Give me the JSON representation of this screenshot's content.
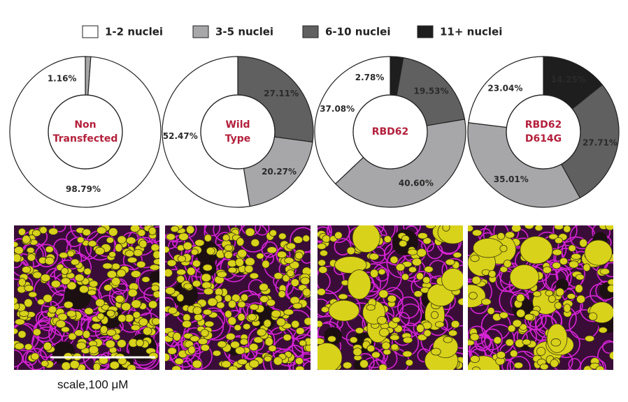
{
  "chart_data": [
    {
      "type": "donut",
      "title": [
        "Non",
        "Transfected"
      ],
      "categories": [
        "1-2 nuclei",
        "3-5 nuclei",
        "6-10 nuclei",
        "11+ nuclei"
      ],
      "colors": [
        "#ffffff",
        "#a7a7a9",
        "#606061",
        "#1e1e1e"
      ],
      "values": [
        98.79,
        1.16,
        0,
        0
      ],
      "value_labels": [
        "98.79%",
        "1.16%",
        null,
        null
      ]
    },
    {
      "type": "donut",
      "title": [
        "Wild",
        "Type"
      ],
      "categories": [
        "1-2 nuclei",
        "3-5 nuclei",
        "6-10 nuclei",
        "11+ nuclei"
      ],
      "colors": [
        "#ffffff",
        "#a7a7a9",
        "#606061",
        "#1e1e1e"
      ],
      "values": [
        52.47,
        20.27,
        27.11,
        0
      ],
      "value_labels": [
        "52.47%",
        "20.27%",
        "27.11%",
        null
      ]
    },
    {
      "type": "donut",
      "title": [
        "RBD62"
      ],
      "categories": [
        "1-2 nuclei",
        "3-5 nuclei",
        "6-10 nuclei",
        "11+ nuclei"
      ],
      "colors": [
        "#ffffff",
        "#a7a7a9",
        "#606061",
        "#1e1e1e"
      ],
      "values": [
        37.08,
        40.6,
        19.53,
        2.78
      ],
      "value_labels": [
        "37.08%",
        "40.60%",
        "19.53%",
        "2.78%"
      ]
    },
    {
      "type": "donut",
      "title": [
        "RBD62",
        "D614G"
      ],
      "categories": [
        "1-2 nuclei",
        "3-5 nuclei",
        "6-10 nuclei",
        "11+ nuclei"
      ],
      "colors": [
        "#ffffff",
        "#a7a7a9",
        "#606061",
        "#1e1e1e"
      ],
      "values": [
        23.04,
        35.01,
        27.71,
        14.25
      ],
      "value_labels": [
        "23.04%",
        "35.01%",
        "27.71%",
        "14.25%"
      ]
    }
  ],
  "scale_label": "scale,100 μM"
}
